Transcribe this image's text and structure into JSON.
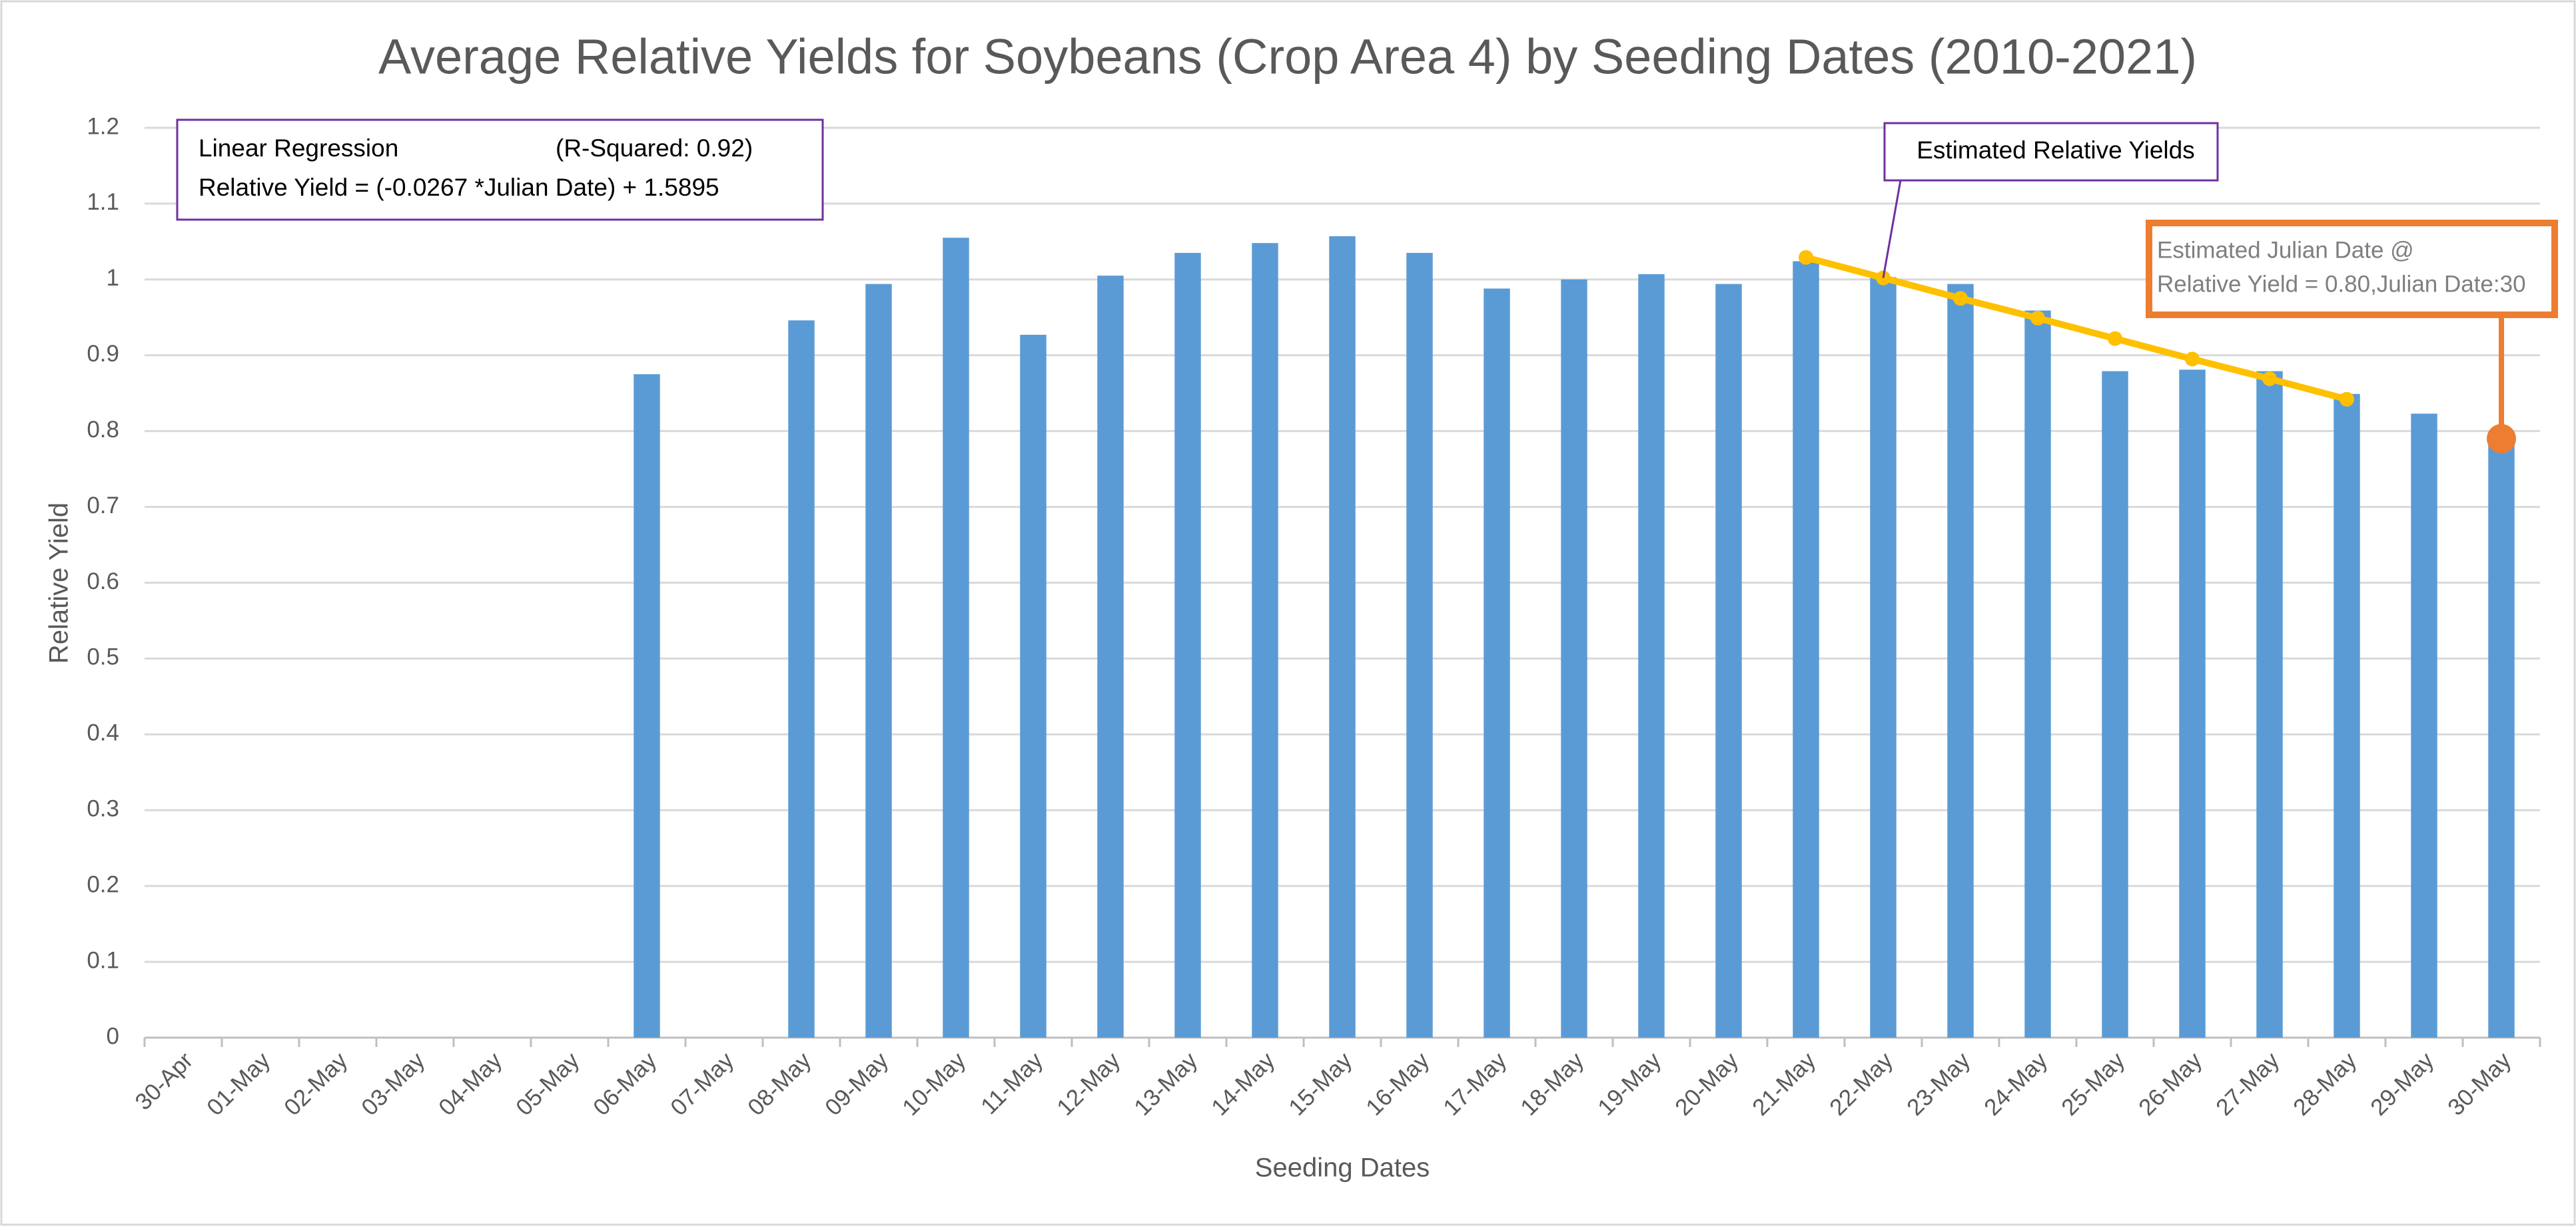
{
  "chart_data": {
    "type": "bar",
    "title": "Average Relative Yields for Soybeans (Crop Area 4) by Seeding Dates (2010-2021)",
    "x_label": "Seeding Dates",
    "y_label": "Relative Yield",
    "categories": [
      "30-Apr",
      "01-May",
      "02-May",
      "03-May",
      "04-May",
      "05-May",
      "06-May",
      "07-May",
      "08-May",
      "09-May",
      "10-May",
      "11-May",
      "12-May",
      "13-May",
      "14-May",
      "15-May",
      "16-May",
      "17-May",
      "18-May",
      "19-May",
      "20-May",
      "21-May",
      "22-May",
      "23-May",
      "24-May",
      "25-May",
      "26-May",
      "27-May",
      "28-May",
      "29-May",
      "30-May"
    ],
    "series": [
      {
        "type": "bar",
        "color": "#5b9bd5",
        "values": [
          null,
          null,
          null,
          null,
          null,
          null,
          0.875,
          null,
          0.946,
          0.994,
          1.055,
          0.927,
          1.005,
          1.035,
          1.048,
          1.057,
          1.035,
          0.988,
          1.0,
          1.007,
          0.994,
          1.024,
          1.003,
          0.994,
          0.959,
          0.879,
          0.881,
          0.879,
          0.849,
          0.823,
          0.795
        ]
      },
      {
        "type": "line",
        "name": "Estimated Relative Yields",
        "color": "#ffc000",
        "values": [
          null,
          null,
          null,
          null,
          null,
          null,
          null,
          null,
          null,
          null,
          null,
          null,
          null,
          null,
          null,
          null,
          null,
          null,
          null,
          null,
          null,
          1.029,
          1.002,
          0.975,
          0.949,
          0.922,
          0.895,
          0.869,
          0.842,
          null,
          null
        ]
      },
      {
        "type": "scatter",
        "color": "#ed7d31",
        "values": [
          null,
          null,
          null,
          null,
          null,
          null,
          null,
          null,
          null,
          null,
          null,
          null,
          null,
          null,
          null,
          null,
          null,
          null,
          null,
          null,
          null,
          null,
          null,
          null,
          null,
          null,
          null,
          null,
          null,
          null,
          0.79
        ]
      }
    ],
    "ylim": [
      0,
      1.2
    ],
    "yticks": [
      0,
      0.1,
      0.2,
      0.3,
      0.4,
      0.5,
      0.6,
      0.7,
      0.8,
      0.9,
      1,
      1.1,
      1.2
    ],
    "grid": true,
    "annotations": {
      "regression": {
        "title": "Linear Regression",
        "r_squared": "(R-Squared: 0.92)",
        "equation": "Relative Yield = (-0.0267 *Julian Date) + 1.5895"
      },
      "estimate": [
        "Estimated Julian Date @",
        "Relative Yield = 0.80,Julian Date:30"
      ]
    }
  }
}
